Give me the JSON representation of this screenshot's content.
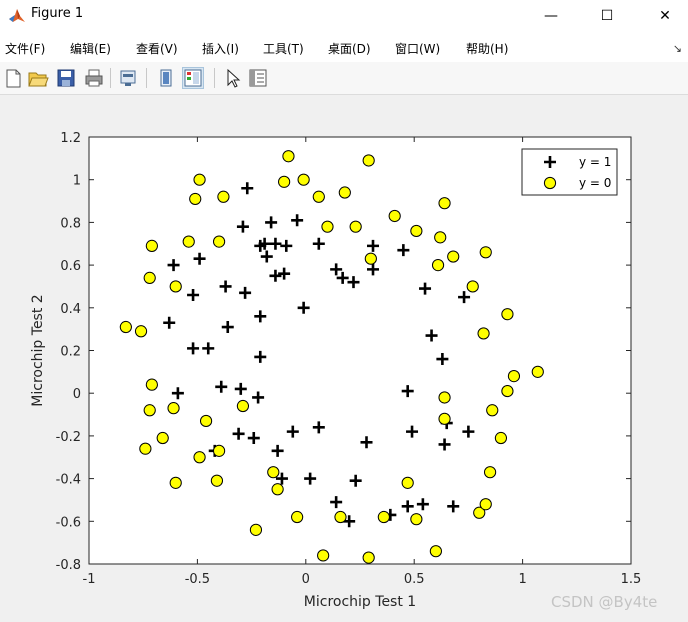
{
  "window": {
    "title": "Figure 1",
    "controls": [
      "—",
      "☐",
      "✕"
    ]
  },
  "menu": {
    "items": [
      "文件(F)",
      "编辑(E)",
      "查看(V)",
      "插入(I)",
      "工具(T)",
      "桌面(D)",
      "窗口(W)",
      "帮助(H)"
    ],
    "pin_glyph": "↘"
  },
  "toolbar": {
    "buttons": [
      "new-figure-icon",
      "open-folder-icon",
      "save-icon",
      "print-icon",
      "link-plot-icon",
      "hide-plot-tools-icon",
      "show-plot-tools-icon",
      "edit-plot-icon",
      "property-inspector-icon"
    ]
  },
  "chart_data": {
    "type": "scatter",
    "xlabel": "Microchip Test 1",
    "ylabel": "Microchip Test 2",
    "xlim": [
      -1,
      1.5
    ],
    "ylim": [
      -0.8,
      1.2
    ],
    "xticks": [
      "-1",
      "-0.5",
      "0",
      "0.5",
      "1",
      "1.5"
    ],
    "yticks": [
      "-0.8",
      "-0.6",
      "-0.4",
      "-0.2",
      "0",
      "0.2",
      "0.4",
      "0.6",
      "0.8",
      "1",
      "1.2"
    ],
    "legend_position": "top-right",
    "series": [
      {
        "name": "y = 1",
        "marker": "plus",
        "color": "#000000",
        "points": [
          [
            -0.27,
            0.96
          ],
          [
            -0.29,
            0.78
          ],
          [
            -0.16,
            0.8
          ],
          [
            -0.04,
            0.81
          ],
          [
            -0.21,
            0.69
          ],
          [
            -0.19,
            0.7
          ],
          [
            -0.14,
            0.7
          ],
          [
            -0.09,
            0.69
          ],
          [
            0.06,
            0.7
          ],
          [
            -0.61,
            0.6
          ],
          [
            -0.49,
            0.63
          ],
          [
            -0.18,
            0.64
          ],
          [
            -0.14,
            0.55
          ],
          [
            -0.1,
            0.56
          ],
          [
            -0.37,
            0.5
          ],
          [
            -0.28,
            0.47
          ],
          [
            -0.52,
            0.46
          ],
          [
            0.14,
            0.58
          ],
          [
            0.17,
            0.54
          ],
          [
            0.22,
            0.52
          ],
          [
            0.31,
            0.69
          ],
          [
            0.31,
            0.58
          ],
          [
            0.45,
            0.67
          ],
          [
            0.55,
            0.49
          ],
          [
            0.73,
            0.45
          ],
          [
            -0.63,
            0.33
          ],
          [
            -0.21,
            0.36
          ],
          [
            -0.36,
            0.31
          ],
          [
            -0.01,
            0.4
          ],
          [
            -0.52,
            0.21
          ],
          [
            -0.45,
            0.21
          ],
          [
            -0.21,
            0.17
          ],
          [
            0.58,
            0.27
          ],
          [
            0.63,
            0.16
          ],
          [
            -0.59,
            0.0
          ],
          [
            -0.39,
            0.03
          ],
          [
            -0.3,
            0.02
          ],
          [
            -0.22,
            -0.02
          ],
          [
            0.47,
            0.01
          ],
          [
            -0.31,
            -0.19
          ],
          [
            -0.24,
            -0.21
          ],
          [
            -0.06,
            -0.18
          ],
          [
            0.06,
            -0.16
          ],
          [
            0.28,
            -0.23
          ],
          [
            0.49,
            -0.18
          ],
          [
            0.65,
            -0.14
          ],
          [
            0.75,
            -0.18
          ],
          [
            -0.42,
            -0.27
          ],
          [
            -0.13,
            -0.27
          ],
          [
            0.64,
            -0.24
          ],
          [
            -0.11,
            -0.4
          ],
          [
            0.02,
            -0.4
          ],
          [
            0.23,
            -0.41
          ],
          [
            0.14,
            -0.51
          ],
          [
            0.2,
            -0.6
          ],
          [
            0.39,
            -0.57
          ],
          [
            0.47,
            -0.53
          ],
          [
            0.54,
            -0.52
          ],
          [
            0.68,
            -0.53
          ]
        ]
      },
      {
        "name": "y = 0",
        "marker": "circle",
        "color": "#ffff00",
        "points": [
          [
            -0.08,
            1.11
          ],
          [
            0.29,
            1.09
          ],
          [
            -0.49,
            1.0
          ],
          [
            -0.1,
            0.99
          ],
          [
            -0.01,
            1.0
          ],
          [
            -0.51,
            0.91
          ],
          [
            -0.38,
            0.92
          ],
          [
            0.06,
            0.92
          ],
          [
            0.18,
            0.94
          ],
          [
            0.64,
            0.89
          ],
          [
            0.41,
            0.83
          ],
          [
            0.1,
            0.78
          ],
          [
            0.23,
            0.78
          ],
          [
            0.51,
            0.76
          ],
          [
            -0.71,
            0.69
          ],
          [
            -0.54,
            0.71
          ],
          [
            -0.4,
            0.71
          ],
          [
            0.62,
            0.73
          ],
          [
            0.68,
            0.64
          ],
          [
            0.83,
            0.66
          ],
          [
            -0.72,
            0.54
          ],
          [
            -0.6,
            0.5
          ],
          [
            0.3,
            0.63
          ],
          [
            0.61,
            0.6
          ],
          [
            0.77,
            0.5
          ],
          [
            -0.83,
            0.31
          ],
          [
            -0.76,
            0.29
          ],
          [
            0.82,
            0.28
          ],
          [
            0.93,
            0.37
          ],
          [
            0.96,
            0.08
          ],
          [
            1.07,
            0.1
          ],
          [
            -0.71,
            0.04
          ],
          [
            0.64,
            -0.02
          ],
          [
            0.93,
            0.01
          ],
          [
            -0.72,
            -0.08
          ],
          [
            -0.61,
            -0.07
          ],
          [
            -0.29,
            -0.06
          ],
          [
            0.86,
            -0.08
          ],
          [
            -0.74,
            -0.26
          ],
          [
            -0.66,
            -0.21
          ],
          [
            -0.46,
            -0.13
          ],
          [
            0.64,
            -0.12
          ],
          [
            0.9,
            -0.21
          ],
          [
            -0.49,
            -0.3
          ],
          [
            -0.4,
            -0.27
          ],
          [
            -0.15,
            -0.37
          ],
          [
            -0.6,
            -0.42
          ],
          [
            -0.41,
            -0.41
          ],
          [
            -0.13,
            -0.45
          ],
          [
            0.47,
            -0.42
          ],
          [
            0.85,
            -0.37
          ],
          [
            -0.23,
            -0.64
          ],
          [
            -0.04,
            -0.58
          ],
          [
            0.08,
            -0.76
          ],
          [
            0.16,
            -0.58
          ],
          [
            0.29,
            -0.77
          ],
          [
            0.36,
            -0.58
          ],
          [
            0.51,
            -0.59
          ],
          [
            0.6,
            -0.74
          ],
          [
            0.8,
            -0.56
          ],
          [
            0.83,
            -0.52
          ]
        ]
      }
    ]
  },
  "watermark": "CSDN @By4te"
}
